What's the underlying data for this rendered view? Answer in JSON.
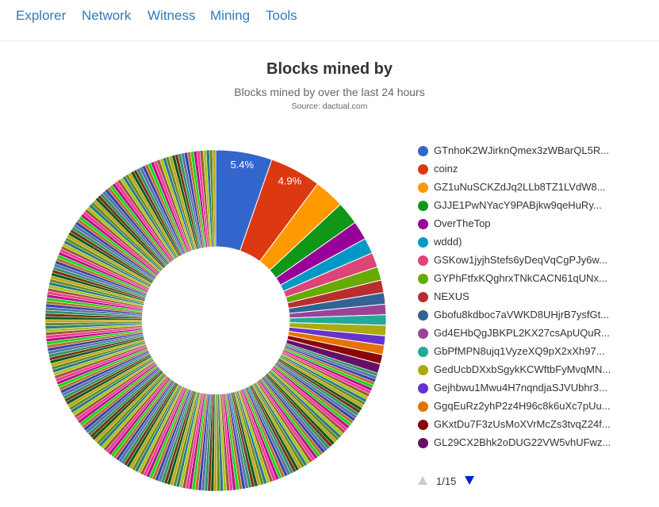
{
  "nav": {
    "items": [
      "Explorer",
      "Network",
      "Witness",
      "Mining",
      "Tools"
    ]
  },
  "chart_title": "Blocks mined by",
  "chart_subtitle": "Blocks mined by over the last 24 hours",
  "chart_credits": "Source: dactual.com",
  "chart_data": {
    "type": "pie",
    "title": "Blocks mined by",
    "subtitle": "Blocks mined by over the last 24 hours",
    "donut": true,
    "data_labels_shown": [
      "5.4%",
      "4.9%"
    ],
    "slices": [
      {
        "name": "GTnhoK2WJirknQmex3zWBarQL5R...",
        "value": 5.4,
        "color": "#3366cc"
      },
      {
        "name": "coinz",
        "value": 4.9,
        "color": "#dc3912"
      },
      {
        "name": "GZ1uNuSCKZdJq2LLb8TZ1LVdW8...",
        "value": 2.9,
        "color": "#ff9900"
      },
      {
        "name": "GJJE1PwNYacY9PABjkw9qeHuRy...",
        "value": 2.2,
        "color": "#109618"
      },
      {
        "name": "OverTheTop",
        "value": 1.8,
        "color": "#990099"
      },
      {
        "name": "wddd)",
        "value": 1.5,
        "color": "#0099c6"
      },
      {
        "name": "GSKow1jyjhStefs6yDeqVqCgPJy6w...",
        "value": 1.4,
        "color": "#dd4477"
      },
      {
        "name": "GYPhFtfxKQghrxTNkCACN61qUNx...",
        "value": 1.3,
        "color": "#66aa00"
      },
      {
        "name": "NEXUS",
        "value": 1.2,
        "color": "#b82e2e"
      },
      {
        "name": "Gbofu8kdboc7aVWKD8UHjrB7ysfGt...",
        "value": 1.1,
        "color": "#316395"
      },
      {
        "name": "Gd4EHbQgJBKPL2KX27csApUQuR...",
        "value": 1.0,
        "color": "#994499"
      },
      {
        "name": "GbPfMPN8ujq1VyzeXQ9pX2xXh97...",
        "value": 1.0,
        "color": "#22aa99"
      },
      {
        "name": "GedUcbDXxbSgykKCWftbFyMvqMN...",
        "value": 1.0,
        "color": "#aaaa11"
      },
      {
        "name": "Gejhbwu1Mwu4H7nqndjaSJVUbhr3...",
        "value": 0.9,
        "color": "#6633cc"
      },
      {
        "name": "GgqEuRz2yhP2z4H96c8k6uXc7pUu...",
        "value": 0.9,
        "color": "#e67300"
      },
      {
        "name": "GKxtDu7F3zUsMoXVrMcZs3tvqZ24f...",
        "value": 0.9,
        "color": "#8b0707"
      },
      {
        "name": "GL29CX2Bhk2oDUG22VW5vhUFwz...",
        "value": 0.9,
        "color": "#651067"
      }
    ],
    "other_miners_share": 70.7,
    "other_miners_palette": [
      "#329262",
      "#5574a6",
      "#3b3eac",
      "#b77322",
      "#16d620",
      "#b91383",
      "#f4359e",
      "#9c5935",
      "#a9c413",
      "#2a778d",
      "#668d1c",
      "#bea413",
      "#0c5922",
      "#743411"
    ],
    "legend_placement": "right"
  },
  "pager": {
    "text": "1/15"
  },
  "icons": {
    "pager_up": "triangle-up-icon",
    "pager_down": "triangle-down-icon"
  }
}
